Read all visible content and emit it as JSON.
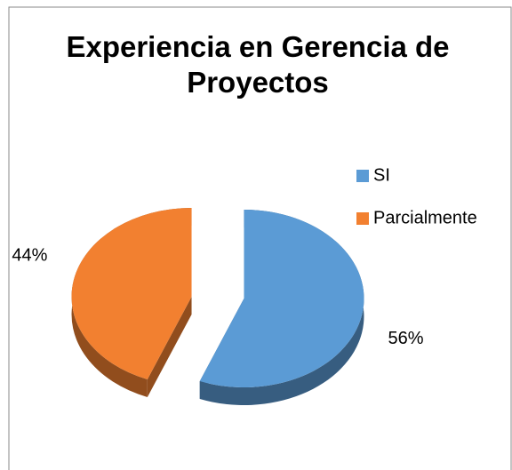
{
  "chart_data": {
    "type": "pie",
    "title": "Experiencia en Gerencia de Proyectos",
    "categories": [
      "SI",
      "Parcialmente"
    ],
    "values": [
      56,
      44
    ],
    "value_labels": [
      "56%",
      "44%"
    ],
    "colors": [
      "#5b9bd5",
      "#f28030"
    ],
    "legend": "right"
  }
}
